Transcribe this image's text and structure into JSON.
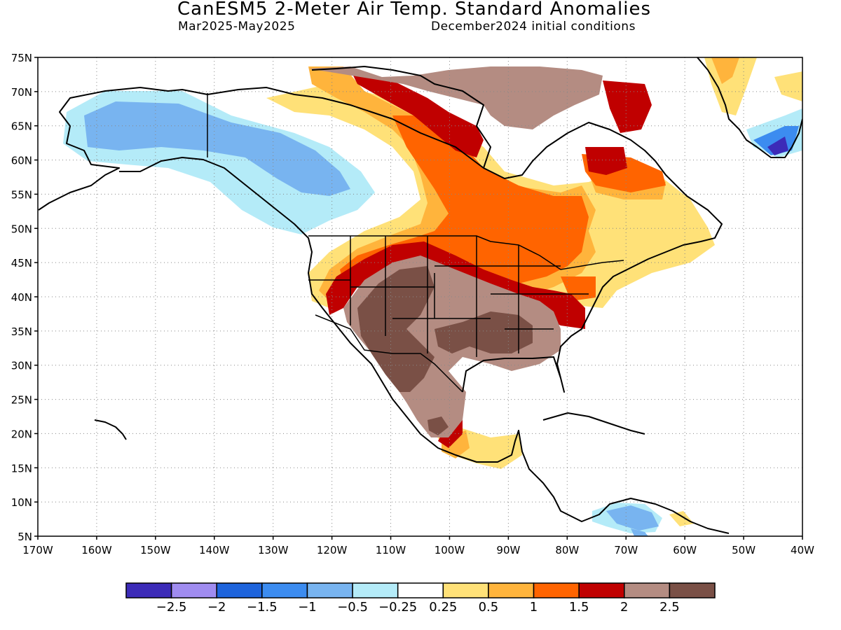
{
  "header": {
    "title": "CanESM5 2-Meter Air Temp. Standard Anomalies",
    "period": "Mar2025-May2025",
    "init": "December2024 initial conditions"
  },
  "axes": {
    "lat_labels": [
      "75N",
      "70N",
      "65N",
      "60N",
      "55N",
      "50N",
      "45N",
      "40N",
      "35N",
      "30N",
      "25N",
      "20N",
      "15N",
      "10N",
      "5N"
    ],
    "lat_values": [
      75,
      70,
      65,
      60,
      55,
      50,
      45,
      40,
      35,
      30,
      25,
      20,
      15,
      10,
      5
    ],
    "lon_labels": [
      "170W",
      "160W",
      "150W",
      "140W",
      "130W",
      "120W",
      "110W",
      "100W",
      "90W",
      "80W",
      "70W",
      "60W",
      "50W",
      "40W"
    ],
    "lon_values": [
      -170,
      -160,
      -150,
      -140,
      -130,
      -120,
      -110,
      -100,
      -90,
      -80,
      -70,
      -60,
      -50,
      -40
    ],
    "lat_range": [
      5,
      75
    ],
    "lon_range": [
      -170,
      -40
    ],
    "grid": "dotted"
  },
  "legend": {
    "colors": [
      "#3c2bb8",
      "#a08cf0",
      "#1e64dc",
      "#3c8cf0",
      "#78b4f0",
      "#b4ebf8",
      "#ffffff",
      "#ffe178",
      "#ffb43c",
      "#ff6400",
      "#c00000",
      "#b48c82",
      "#7a5046"
    ],
    "labels": [
      "-2.5",
      "-2",
      "-1.5",
      "-1",
      "-0.5",
      "-0.25",
      "0.25",
      "0.5",
      "1",
      "1.5",
      "2",
      "2.5"
    ]
  },
  "colors": {
    "alaska_cold": "#78b4f0",
    "alaska_cool": "#b4ebf8",
    "warm_yellow": "#ffe178",
    "warm_orange": "#ffb43c",
    "warm_deep_orange": "#ff6400",
    "hot_red": "#c00000",
    "light_brown": "#b48c82",
    "dark_brown": "#7a5046"
  }
}
